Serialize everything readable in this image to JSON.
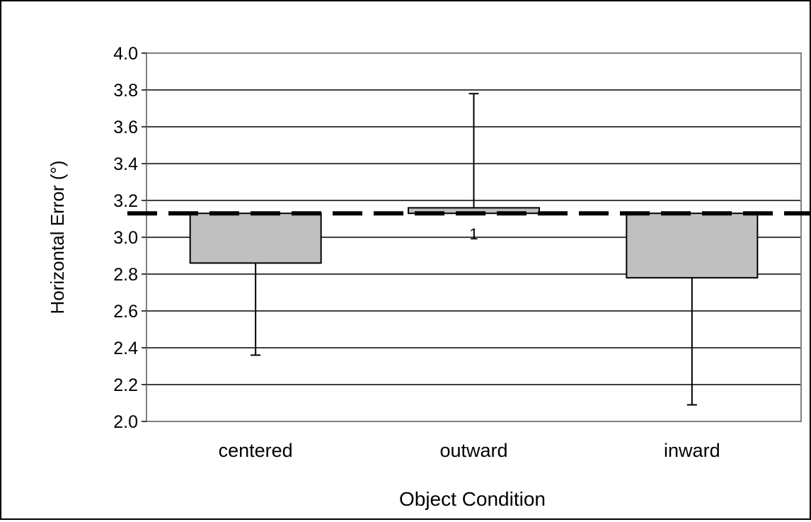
{
  "chart_data": {
    "type": "bar",
    "title": "",
    "xlabel": "Object Condition",
    "ylabel": "Horizontal Error (°)",
    "categories": [
      "centered",
      "outward",
      "inward"
    ],
    "baseline": 3.13,
    "values": [
      2.86,
      3.16,
      2.78
    ],
    "error_bars": [
      {
        "low": 2.36,
        "high": 2.86
      },
      {
        "low": 3.16,
        "high": 3.78
      },
      {
        "low": 2.09,
        "high": 2.78
      }
    ],
    "ylim": [
      2.0,
      4.0
    ],
    "yticks": [
      "2.0",
      "2.2",
      "2.4",
      "2.6",
      "2.8",
      "3.0",
      "3.2",
      "3.4",
      "3.6",
      "3.8",
      "4.0"
    ],
    "grid": true,
    "legend": "none",
    "annotation": "1",
    "colors": {
      "bar_fill": "#c0c0c0",
      "bar_stroke": "#000000",
      "grid": "#000000",
      "plot_border": "#808080",
      "reference_line": "#000000",
      "annotation": "#c8c8c8"
    }
  }
}
